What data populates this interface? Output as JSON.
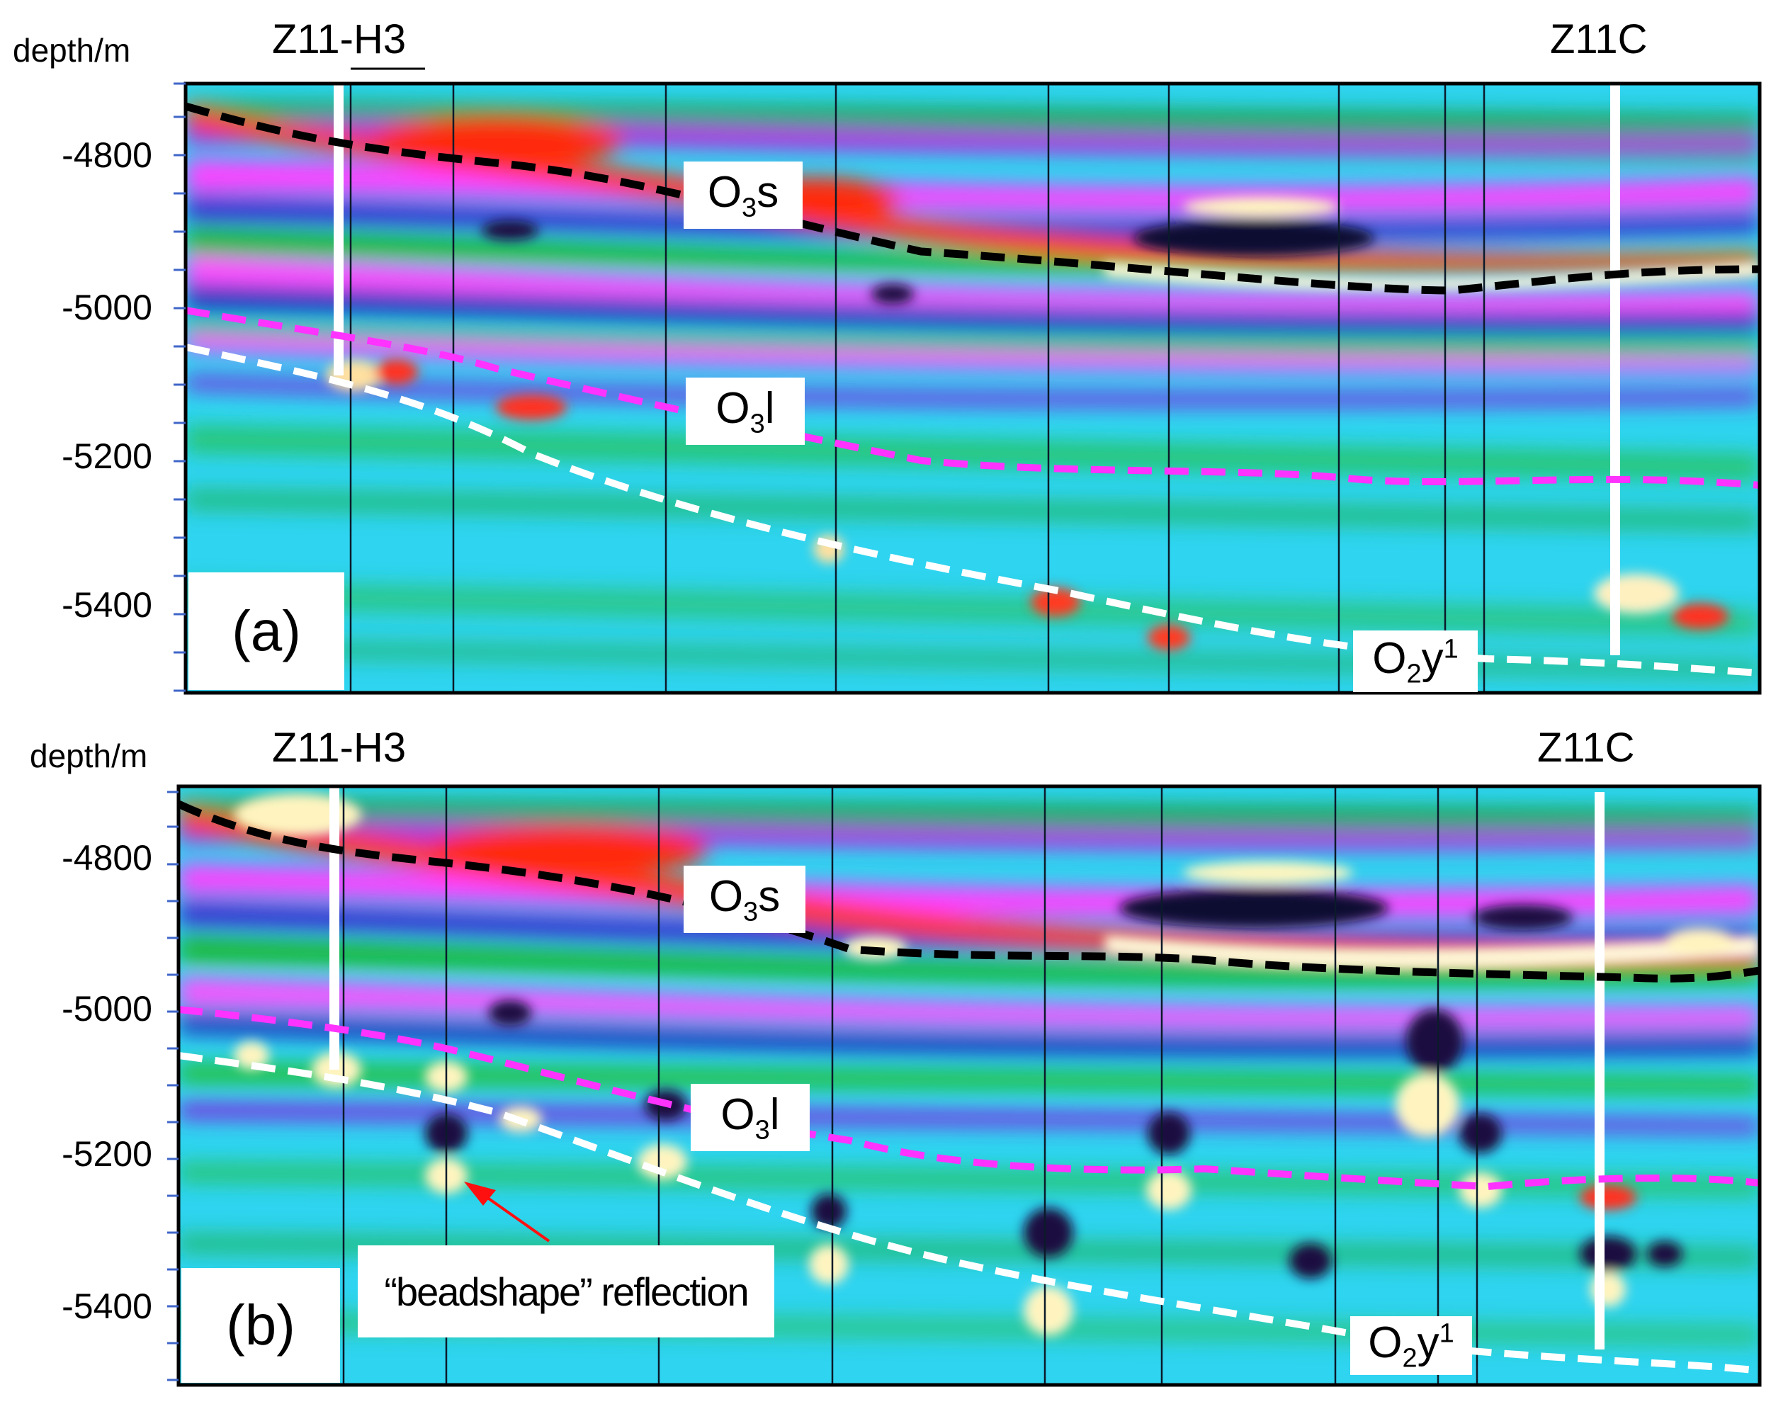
{
  "axis": {
    "title": "depth/m",
    "ticks": [
      "-4800",
      "-5000",
      "-5200",
      "-5400"
    ]
  },
  "panels": [
    {
      "letter": "(a)",
      "wells": {
        "left": "Z11-H3",
        "right": "Z11C"
      },
      "horizons": [
        {
          "base": "O",
          "sub": "3",
          "rest": "s",
          "sup": "",
          "color": "#000000"
        },
        {
          "base": "O",
          "sub": "3",
          "rest": "l",
          "sup": "",
          "color": "#ff33ff"
        },
        {
          "base": "O",
          "sub": "2",
          "rest": "y",
          "sup": "1",
          "color": "#ffffff"
        }
      ]
    },
    {
      "letter": "(b)",
      "wells": {
        "left": "Z11-H3",
        "right": "Z11C"
      },
      "horizons": [
        {
          "base": "O",
          "sub": "3",
          "rest": "s",
          "sup": "",
          "color": "#000000"
        },
        {
          "base": "O",
          "sub": "3",
          "rest": "l",
          "sup": "",
          "color": "#ff33ff"
        },
        {
          "base": "O",
          "sub": "2",
          "rest": "y",
          "sup": "1",
          "color": "#ffffff"
        }
      ],
      "annotation": "“beadshape” reflection"
    }
  ]
}
